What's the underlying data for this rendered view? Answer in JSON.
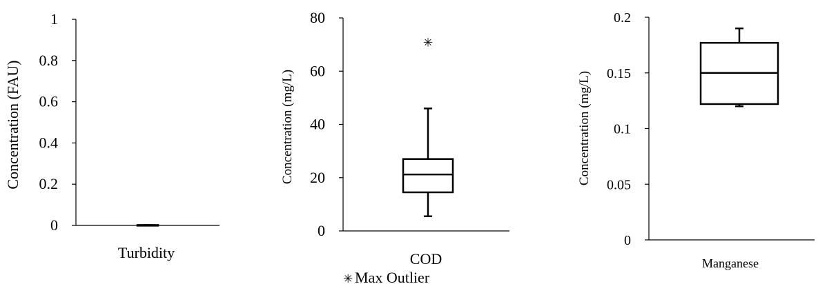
{
  "chart_data": [
    {
      "type": "box",
      "ylabel": "Concentration (FAU)",
      "ylim": [
        0,
        1
      ],
      "yticks": [
        0,
        0.2,
        0.4,
        0.6,
        0.8,
        1
      ],
      "ytick_labels": [
        "0",
        "0.2",
        "0.4",
        "0.6",
        "0.8",
        "1"
      ],
      "categories": [
        "Turbidity"
      ],
      "box": {
        "min": 0,
        "q1": 0,
        "median": 0,
        "q3": 0.002,
        "max": 0.002
      },
      "outliers": []
    },
    {
      "type": "box",
      "ylabel": "Concentration (mg/L)",
      "ylim": [
        0,
        80
      ],
      "yticks": [
        0,
        20,
        40,
        60,
        80
      ],
      "ytick_labels": [
        "0",
        "20",
        "40",
        "60",
        "80"
      ],
      "categories": [
        "COD"
      ],
      "box": {
        "min": 5.5,
        "q1": 14.5,
        "median": 21.2,
        "q3": 27,
        "max": 46
      },
      "outliers": [
        70.8
      ]
    },
    {
      "type": "box",
      "ylabel": "Concentration (mg/L)",
      "ylim": [
        0,
        0.2
      ],
      "yticks": [
        0,
        0.05,
        0.1,
        0.15,
        0.2
      ],
      "ytick_labels": [
        "0",
        "0.05",
        "0.1",
        "0.15",
        "0.2"
      ],
      "categories": [
        "Manganese"
      ],
      "box": {
        "min": 0.12,
        "q1": 0.122,
        "median": 0.15,
        "q3": 0.177,
        "max": 0.19
      },
      "outliers": []
    }
  ],
  "legend": {
    "marker": "✳",
    "label": "Max Outlier",
    "color": "#e8202a"
  },
  "colors": {
    "box": "#000000",
    "outlier": "#e8202a"
  }
}
